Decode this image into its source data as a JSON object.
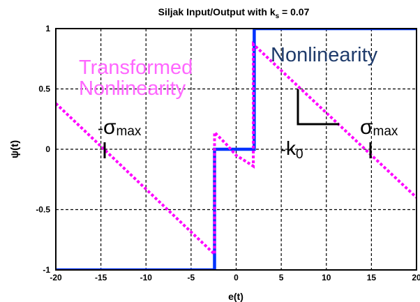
{
  "chart_data": {
    "type": "line",
    "title": {
      "prefix": "Siljak Input/Output with k",
      "subscript": "s",
      "suffix": " = 0.07"
    },
    "xlabel": "e(t)",
    "ylabel": "ψ(t)",
    "xlim": [
      -20,
      20
    ],
    "ylim": [
      -1,
      1
    ],
    "xticks": [
      -20,
      -15,
      -10,
      -5,
      0,
      5,
      10,
      15,
      20
    ],
    "yticks": [
      -1,
      -0.5,
      0,
      0.5,
      1
    ],
    "xtick_labels": [
      "-20",
      "-15",
      "-10",
      "-5",
      "0",
      "5",
      "10",
      "15",
      "20"
    ],
    "ytick_labels": [
      "-1",
      "-0.5",
      "0",
      "0.5",
      "1"
    ],
    "grid": true,
    "series": [
      {
        "color": "#0033ff",
        "style": "solid",
        "x": [
          -20,
          -2.4,
          -2.4,
          2.0,
          2.0,
          20
        ],
        "y": [
          -1,
          -1,
          0,
          0,
          1,
          1
        ]
      },
      {
        "color": "#ff00ff",
        "style": "dotted",
        "x": [
          -20,
          -2.4,
          -2.4,
          -1.2,
          0,
          1.9,
          1.9,
          20
        ],
        "y": [
          0.38,
          -0.87,
          0.14,
          0.05,
          -0.05,
          -0.14,
          0.87,
          -0.4
        ]
      }
    ],
    "annotations": {
      "transformed_line1": "Transformed",
      "transformed_line2": "Nonlinearity",
      "nonlinearity": "Nonlinearity",
      "sigma_symbol": "σ",
      "sigma_sub": "max",
      "minus": "-",
      "k_symbol": "k",
      "k_sub": "0"
    },
    "colors": {
      "plot_line": "#0033ff",
      "transformed": "#ff00ff",
      "nonlinearity_label": "#1f3b6b",
      "grid": "#000000"
    }
  }
}
